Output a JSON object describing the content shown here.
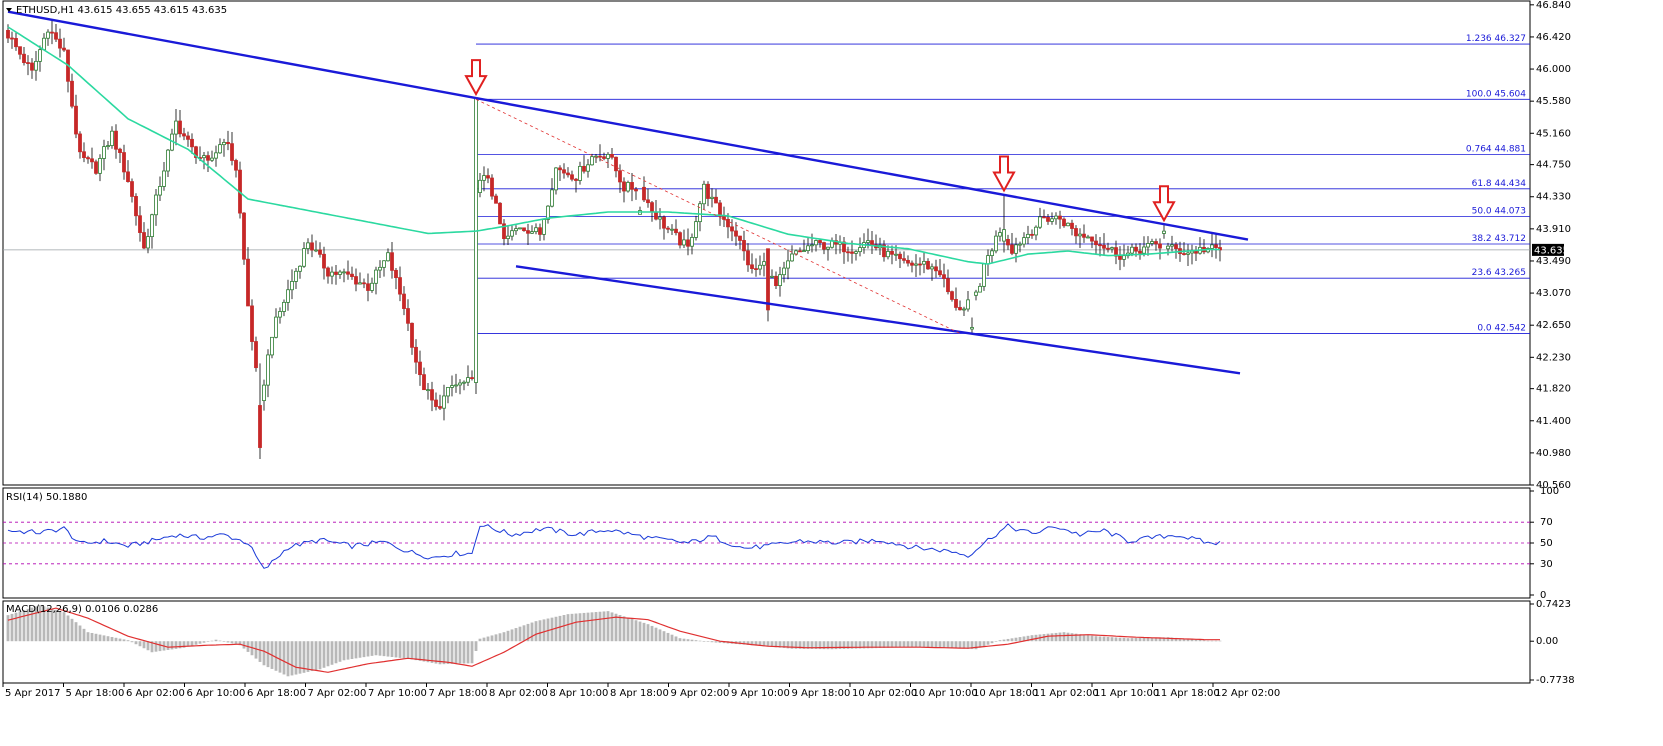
{
  "colors": {
    "bull": "#2e7d32",
    "bear": "#c62828",
    "ma": "#2bd9a0",
    "trend": "#1a1ad8",
    "fib": "#1a1ad8",
    "indicator_line": "#1a3ad8",
    "macd_signal": "#e03030",
    "arrow": "#e02020",
    "level_dash": "#b000b0"
  },
  "chart_data": [
    {
      "type": "candlestick",
      "title": "ETHUSD,H1  43.615 43.655 43.615 43.635",
      "ylim": [
        40.56,
        46.89
      ],
      "y_ticks": [
        "46.840",
        "46.420",
        "46.000",
        "45.580",
        "45.160",
        "44.750",
        "44.330",
        "43.910",
        "43.490",
        "43.070",
        "42.650",
        "42.230",
        "41.820",
        "41.400",
        "40.980",
        "40.560"
      ],
      "x_ticks": [
        "5 Apr 2017",
        "5 Apr 18:00",
        "6 Apr 02:00",
        "6 Apr 10:00",
        "6 Apr 18:00",
        "7 Apr 02:00",
        "7 Apr 10:00",
        "7 Apr 18:00",
        "8 Apr 02:00",
        "8 Apr 10:00",
        "8 Apr 18:00",
        "9 Apr 02:00",
        "9 Apr 10:00",
        "9 Apr 18:00",
        "10 Apr 02:00",
        "10 Apr 10:00",
        "10 Apr 18:00",
        "11 Apr 02:00",
        "11 Apr 10:00",
        "11 Apr 18:00",
        "12 Apr 02:00"
      ],
      "current_price": "43.635",
      "current_value": 43.635,
      "fib_levels": [
        {
          "label": "1.236  46.327",
          "value": 46.327
        },
        {
          "label": "100.0  45.604",
          "value": 45.604
        },
        {
          "label": "0.764  44.881",
          "value": 44.881
        },
        {
          "label": "61.8  44.434",
          "value": 44.434
        },
        {
          "label": "50.0  44.073",
          "value": 44.073
        },
        {
          "label": "38.2  43.712",
          "value": 43.712
        },
        {
          "label": "23.6  43.265",
          "value": 43.265
        },
        {
          "label": "0.0  42.542",
          "value": 42.542
        }
      ],
      "fib_start_bar": 117,
      "moving_average_anchors": [
        [
          0,
          46.55
        ],
        [
          15,
          46.05
        ],
        [
          30,
          45.35
        ],
        [
          45,
          44.95
        ],
        [
          60,
          44.3
        ],
        [
          75,
          44.15
        ],
        [
          90,
          44.0
        ],
        [
          105,
          43.85
        ],
        [
          117,
          43.88
        ],
        [
          125,
          43.95
        ],
        [
          135,
          44.05
        ],
        [
          150,
          44.13
        ],
        [
          165,
          44.13
        ],
        [
          180,
          44.08
        ],
        [
          195,
          43.84
        ],
        [
          210,
          43.72
        ],
        [
          225,
          43.65
        ],
        [
          240,
          43.48
        ],
        [
          245,
          43.45
        ],
        [
          255,
          43.58
        ],
        [
          265,
          43.62
        ],
        [
          275,
          43.56
        ],
        [
          285,
          43.58
        ],
        [
          300,
          43.64
        ]
      ],
      "trend_lines": [
        {
          "from": [
            0,
            46.75
          ],
          "to": [
            117,
            45.62
          ]
        },
        {
          "from": [
            117,
            45.62
          ],
          "to": [
            310,
            43.77
          ]
        },
        {
          "from": [
            127,
            43.42
          ],
          "to": [
            308,
            42.02
          ]
        }
      ],
      "arrows": [
        {
          "bar": 117,
          "value": 45.62
        },
        {
          "bar": 249,
          "value": 44.36
        },
        {
          "bar": 289,
          "value": 43.97
        }
      ],
      "candle_anchors": [
        [
          0,
          46.45
        ],
        [
          6,
          45.95
        ],
        [
          10,
          46.55
        ],
        [
          14,
          46.2
        ],
        [
          18,
          44.85
        ],
        [
          22,
          44.7
        ],
        [
          26,
          45.15
        ],
        [
          30,
          44.55
        ],
        [
          34,
          43.65
        ],
        [
          38,
          44.5
        ],
        [
          42,
          45.3
        ],
        [
          46,
          44.95
        ],
        [
          50,
          44.75
        ],
        [
          54,
          45.1
        ],
        [
          57,
          44.7
        ],
        [
          60,
          42.9
        ],
        [
          63,
          41.6
        ],
        [
          66,
          42.55
        ],
        [
          70,
          43.1
        ],
        [
          75,
          43.75
        ],
        [
          80,
          43.35
        ],
        [
          85,
          43.3
        ],
        [
          90,
          43.15
        ],
        [
          95,
          43.55
        ],
        [
          99,
          42.9
        ],
        [
          103,
          41.95
        ],
        [
          107,
          41.55
        ],
        [
          111,
          41.85
        ],
        [
          115,
          41.9
        ],
        [
          116,
          41.9
        ],
        [
          117,
          44.45
        ],
        [
          120,
          44.6
        ],
        [
          124,
          43.75
        ],
        [
          128,
          43.95
        ],
        [
          133,
          43.85
        ],
        [
          137,
          44.7
        ],
        [
          142,
          44.6
        ],
        [
          146,
          44.85
        ],
        [
          150,
          44.9
        ],
        [
          154,
          44.45
        ],
        [
          158,
          44.45
        ],
        [
          161,
          44.15
        ],
        [
          165,
          43.9
        ],
        [
          170,
          43.65
        ],
        [
          174,
          44.45
        ],
        [
          178,
          44.1
        ],
        [
          182,
          43.85
        ],
        [
          186,
          43.35
        ],
        [
          189,
          43.45
        ],
        [
          192,
          43.15
        ],
        [
          196,
          43.55
        ],
        [
          201,
          43.7
        ],
        [
          206,
          43.7
        ],
        [
          211,
          43.65
        ],
        [
          215,
          43.75
        ],
        [
          219,
          43.6
        ],
        [
          224,
          43.45
        ],
        [
          229,
          43.45
        ],
        [
          233,
          43.35
        ],
        [
          236,
          42.95
        ],
        [
          239,
          42.85
        ],
        [
          242,
          43.05
        ],
        [
          245,
          43.55
        ],
        [
          248,
          43.9
        ],
        [
          251,
          43.65
        ],
        [
          255,
          43.85
        ],
        [
          259,
          44.05
        ],
        [
          263,
          44.05
        ],
        [
          267,
          43.85
        ],
        [
          271,
          43.8
        ],
        [
          275,
          43.65
        ],
        [
          279,
          43.55
        ],
        [
          283,
          43.65
        ],
        [
          287,
          43.7
        ],
        [
          291,
          43.65
        ],
        [
          295,
          43.6
        ],
        [
          299,
          43.65
        ],
        [
          303,
          43.63
        ]
      ],
      "overrides": [
        [
          63,
          41.6,
          42.15,
          40.9,
          41.05
        ],
        [
          117,
          41.9,
          45.3,
          41.75,
          45.62
        ],
        [
          158,
          44.1,
          44.2,
          44.15,
          44.15
        ],
        [
          190,
          43.65,
          43.65,
          42.7,
          42.85
        ],
        [
          241,
          42.6,
          42.75,
          42.53,
          42.62
        ],
        [
          249,
          43.75,
          44.36,
          43.6,
          43.9
        ],
        [
          289,
          43.85,
          43.97,
          43.78,
          43.88
        ]
      ],
      "candle_count": 304
    },
    {
      "type": "line",
      "title": "RSI(14) 50.1880",
      "ylim": [
        0,
        100
      ],
      "y_ticks": [
        "100",
        "70",
        "50",
        "30",
        "0"
      ],
      "levels": [
        70,
        50,
        30
      ],
      "anchors": [
        [
          0,
          62
        ],
        [
          8,
          60
        ],
        [
          14,
          64
        ],
        [
          18,
          49
        ],
        [
          24,
          52
        ],
        [
          30,
          47
        ],
        [
          36,
          52
        ],
        [
          42,
          58
        ],
        [
          48,
          55
        ],
        [
          54,
          58
        ],
        [
          60,
          50
        ],
        [
          64,
          24
        ],
        [
          70,
          46
        ],
        [
          78,
          53
        ],
        [
          86,
          47
        ],
        [
          94,
          51
        ],
        [
          100,
          42
        ],
        [
          106,
          36
        ],
        [
          112,
          40
        ],
        [
          116,
          40
        ],
        [
          118,
          68
        ],
        [
          126,
          58
        ],
        [
          134,
          64
        ],
        [
          142,
          58
        ],
        [
          150,
          63
        ],
        [
          160,
          55
        ],
        [
          170,
          50
        ],
        [
          176,
          56
        ],
        [
          184,
          45
        ],
        [
          190,
          47
        ],
        [
          198,
          52
        ],
        [
          208,
          50
        ],
        [
          218,
          53
        ],
        [
          226,
          46
        ],
        [
          236,
          42
        ],
        [
          240,
          38
        ],
        [
          246,
          56
        ],
        [
          250,
          66
        ],
        [
          256,
          59
        ],
        [
          262,
          66
        ],
        [
          268,
          58
        ],
        [
          274,
          62
        ],
        [
          280,
          52
        ],
        [
          286,
          55
        ],
        [
          292,
          58
        ],
        [
          300,
          50
        ]
      ]
    },
    {
      "type": "bar",
      "title": "MACD(12,26,9) 0.0106 0.0286",
      "ylim": [
        -0.7738,
        0.7423
      ],
      "y_ticks": [
        "0.7423",
        "0.00",
        "-0.7738"
      ],
      "histogram_anchors": [
        [
          0,
          0.52
        ],
        [
          8,
          0.72
        ],
        [
          14,
          0.58
        ],
        [
          20,
          0.18
        ],
        [
          30,
          0.02
        ],
        [
          36,
          -0.22
        ],
        [
          44,
          -0.13
        ],
        [
          52,
          0.03
        ],
        [
          58,
          -0.08
        ],
        [
          64,
          -0.48
        ],
        [
          70,
          -0.7
        ],
        [
          78,
          -0.56
        ],
        [
          84,
          -0.38
        ],
        [
          92,
          -0.28
        ],
        [
          100,
          -0.35
        ],
        [
          108,
          -0.46
        ],
        [
          116,
          -0.44
        ],
        [
          118,
          0.05
        ],
        [
          124,
          0.18
        ],
        [
          132,
          0.4
        ],
        [
          140,
          0.54
        ],
        [
          150,
          0.6
        ],
        [
          160,
          0.34
        ],
        [
          168,
          0.06
        ],
        [
          176,
          -0.02
        ],
        [
          186,
          -0.08
        ],
        [
          196,
          -0.15
        ],
        [
          206,
          -0.16
        ],
        [
          216,
          -0.14
        ],
        [
          226,
          -0.12
        ],
        [
          236,
          -0.14
        ],
        [
          242,
          -0.16
        ],
        [
          248,
          0.02
        ],
        [
          256,
          0.12
        ],
        [
          264,
          0.18
        ],
        [
          272,
          0.1
        ],
        [
          280,
          0.06
        ],
        [
          290,
          0.08
        ],
        [
          300,
          0.01
        ]
      ],
      "signal_anchors": [
        [
          0,
          0.42
        ],
        [
          12,
          0.66
        ],
        [
          20,
          0.46
        ],
        [
          30,
          0.1
        ],
        [
          40,
          -0.12
        ],
        [
          50,
          -0.08
        ],
        [
          58,
          -0.06
        ],
        [
          64,
          -0.2
        ],
        [
          72,
          -0.52
        ],
        [
          80,
          -0.62
        ],
        [
          90,
          -0.45
        ],
        [
          100,
          -0.34
        ],
        [
          110,
          -0.42
        ],
        [
          116,
          -0.5
        ],
        [
          124,
          -0.22
        ],
        [
          132,
          0.14
        ],
        [
          142,
          0.38
        ],
        [
          152,
          0.48
        ],
        [
          160,
          0.43
        ],
        [
          168,
          0.2
        ],
        [
          178,
          0.0
        ],
        [
          190,
          -0.1
        ],
        [
          200,
          -0.13
        ],
        [
          214,
          -0.12
        ],
        [
          228,
          -0.12
        ],
        [
          240,
          -0.14
        ],
        [
          250,
          -0.06
        ],
        [
          260,
          0.1
        ],
        [
          270,
          0.13
        ],
        [
          282,
          0.08
        ],
        [
          300,
          0.03
        ]
      ]
    }
  ]
}
